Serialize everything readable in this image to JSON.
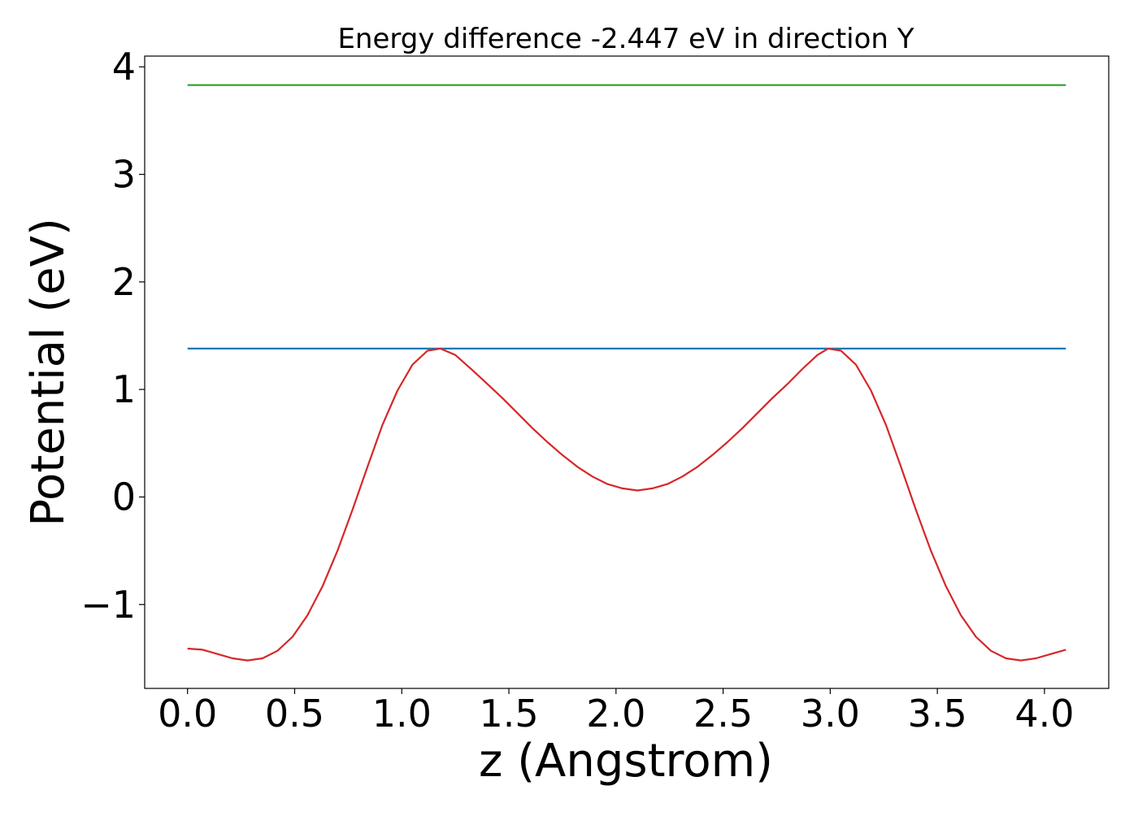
{
  "chart_data": {
    "type": "line",
    "title": "Energy difference -2.447 eV in direction Y",
    "xlabel": "z (Angstrom)",
    "ylabel": "Potential (eV)",
    "xlim": [
      -0.2,
      4.3
    ],
    "ylim": [
      -1.78,
      4.1
    ],
    "xticks": [
      0.0,
      0.5,
      1.0,
      1.5,
      2.0,
      2.5,
      3.0,
      3.5,
      4.0
    ],
    "xtick_labels": [
      "0.0",
      "0.5",
      "1.0",
      "1.5",
      "2.0",
      "2.5",
      "3.0",
      "3.5",
      "4.0"
    ],
    "yticks": [
      -1,
      0,
      1,
      2,
      3,
      4
    ],
    "ytick_labels": [
      "−1",
      "0",
      "1",
      "2",
      "3",
      "4"
    ],
    "grid": false,
    "series": [
      {
        "color": "#2ca02c",
        "x": [
          0.0,
          4.1
        ],
        "y": [
          3.83,
          3.83
        ]
      },
      {
        "color": "#1f77b4",
        "x": [
          0.0,
          4.1
        ],
        "y": [
          1.38,
          1.38
        ]
      },
      {
        "color": "#d62728",
        "x": [
          0.0,
          0.07,
          0.14,
          0.21,
          0.28,
          0.35,
          0.42,
          0.49,
          0.56,
          0.63,
          0.7,
          0.77,
          0.84,
          0.91,
          0.98,
          1.05,
          1.12,
          1.18,
          1.25,
          1.33,
          1.4,
          1.47,
          1.54,
          1.61,
          1.68,
          1.75,
          1.82,
          1.89,
          1.96,
          2.03,
          2.1,
          2.17,
          2.24,
          2.31,
          2.38,
          2.45,
          2.52,
          2.59,
          2.66,
          2.73,
          2.8,
          2.87,
          2.94,
          2.99,
          3.05,
          3.12,
          3.19,
          3.26,
          3.33,
          3.4,
          3.47,
          3.54,
          3.61,
          3.68,
          3.75,
          3.82,
          3.89,
          3.96,
          4.03,
          4.1
        ],
        "y": [
          -1.41,
          -1.42,
          -1.46,
          -1.5,
          -1.52,
          -1.5,
          -1.43,
          -1.3,
          -1.1,
          -0.83,
          -0.5,
          -0.12,
          0.28,
          0.67,
          0.99,
          1.23,
          1.36,
          1.38,
          1.32,
          1.18,
          1.05,
          0.92,
          0.78,
          0.64,
          0.51,
          0.39,
          0.28,
          0.19,
          0.12,
          0.08,
          0.06,
          0.08,
          0.12,
          0.19,
          0.28,
          0.39,
          0.51,
          0.64,
          0.78,
          0.92,
          1.05,
          1.19,
          1.32,
          1.38,
          1.36,
          1.23,
          0.99,
          0.67,
          0.28,
          -0.12,
          -0.5,
          -0.83,
          -1.1,
          -1.3,
          -1.43,
          -1.5,
          -1.52,
          -1.5,
          -1.46,
          -1.42
        ]
      }
    ]
  }
}
